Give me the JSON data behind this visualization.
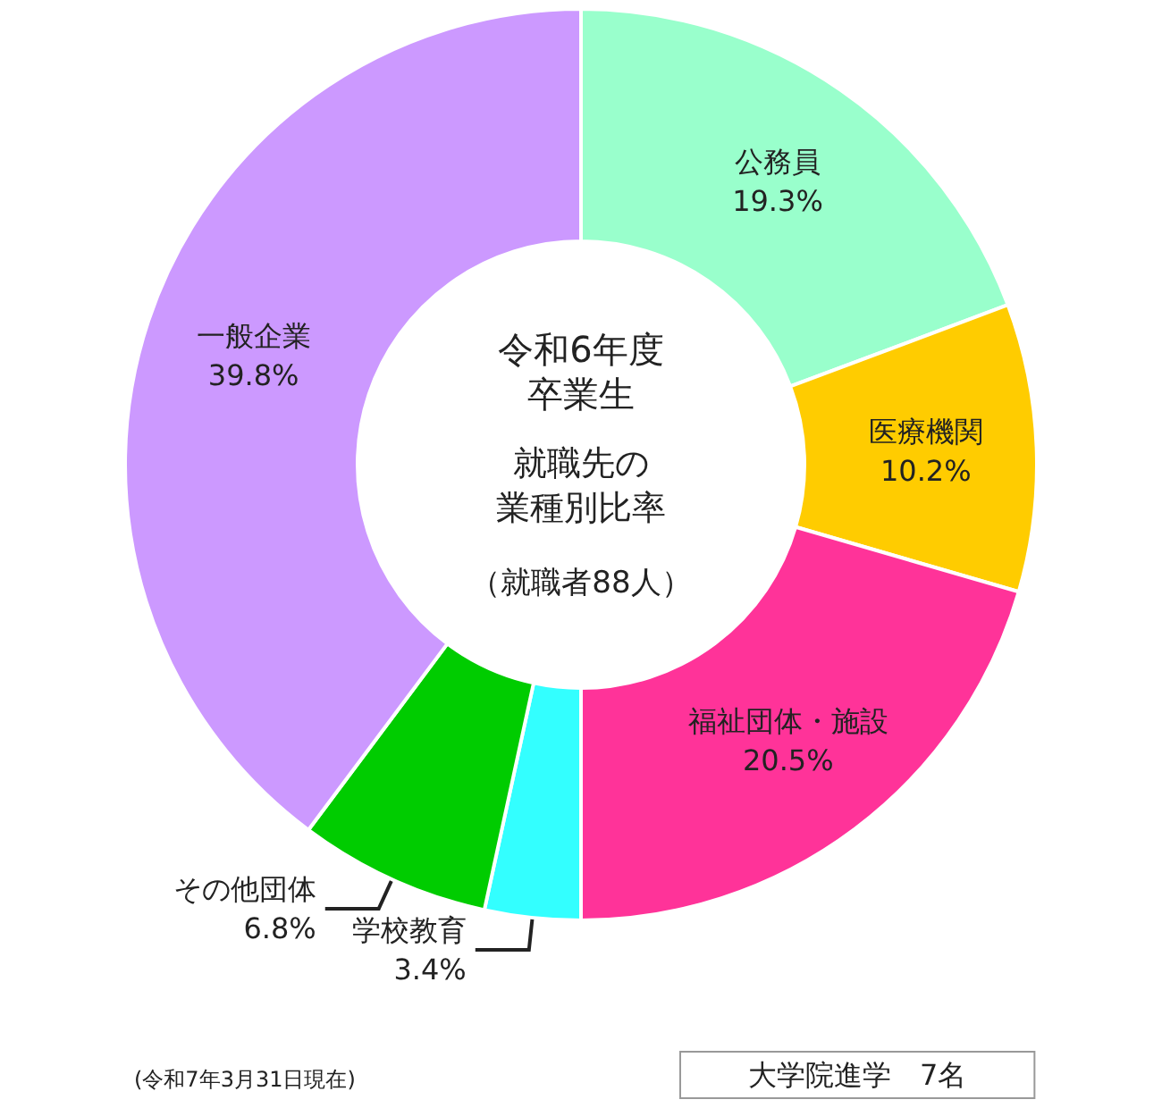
{
  "chart_data": {
    "type": "donut",
    "title": "令和6年度卒業生",
    "subtitle": "就職先の業種別比率",
    "categories": [
      "公務員",
      "医療機関",
      "福祉団体・施設",
      "学校教育",
      "その他団体",
      "一般企業"
    ],
    "values": [
      19.3,
      10.2,
      20.5,
      3.4,
      6.8,
      39.8
    ],
    "colors": [
      "#99ffcc",
      "#ffcc00",
      "#ff3399",
      "#33ffff",
      "#00cc00",
      "#cc99ff"
    ],
    "value_labels": [
      "19.3%",
      "10.2%",
      "20.5%",
      "3.4%",
      "6.8%",
      "39.8%"
    ],
    "legend": false,
    "annotations": [
      "（就職者88人）",
      "(令和7年3月31日現在)",
      "大学院進学　7名"
    ]
  }
}
